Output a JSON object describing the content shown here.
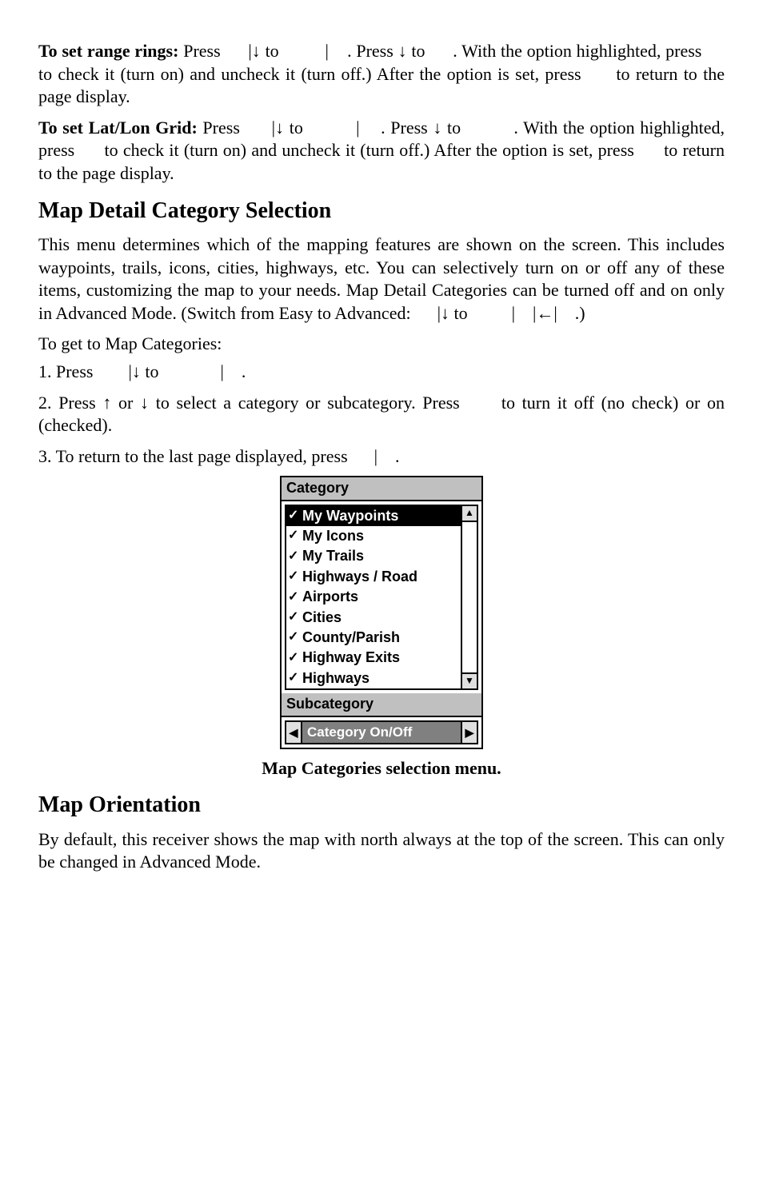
{
  "para1_lead": "To set range rings:",
  "para1_rest": " Press      |↓ to          |    . Press ↓ to      . With the option highlighted, press      to check it (turn on) and uncheck it (turn off.) After the option is set, press      to return to the page display.",
  "para2_lead": "To set Lat/Lon Grid:",
  "para2_rest": " Press      |↓ to          |    . Press ↓ to          . With the option highlighted, press      to check it (turn on) and uncheck it (turn off.) After the option is set, press      to return to the page display.",
  "h_map_detail": "Map Detail Category Selection",
  "para3": "This menu determines which of the mapping features are shown on the screen. This includes waypoints, trails, icons, cities, highways, etc. You can selectively turn on or off any of these items, customizing the map to your needs. Map Detail Categories can be turned off and on only in Advanced Mode. (Switch from Easy to Advanced:      |↓ to          |    |←|    .)",
  "step_lead": "To get to Map Categories:",
  "step1": "1. Press        |↓ to              |    .",
  "step2": "2. Press ↑ or ↓ to select a category or subcategory. Press      to turn it off (no check) or on (checked).",
  "step3": "3. To return to the last page displayed, press      |    .",
  "panel": {
    "title_cat": "Category",
    "title_sub": "Subcategory",
    "subcat_value": "Category On/Off",
    "items": [
      {
        "label": "My Waypoints",
        "selected": true
      },
      {
        "label": "My Icons",
        "selected": false
      },
      {
        "label": "My Trails",
        "selected": false
      },
      {
        "label": "Highways / Road",
        "selected": false
      },
      {
        "label": "Airports",
        "selected": false
      },
      {
        "label": "Cities",
        "selected": false
      },
      {
        "label": "County/Parish",
        "selected": false
      },
      {
        "label": "Highway Exits",
        "selected": false
      },
      {
        "label": "Highways",
        "selected": false
      }
    ]
  },
  "caption": "Map Categories selection menu.",
  "h_map_orient": "Map Orientation",
  "para4": "By default, this receiver shows the map with north always at the top of the screen. This can only be changed in Advanced Mode."
}
